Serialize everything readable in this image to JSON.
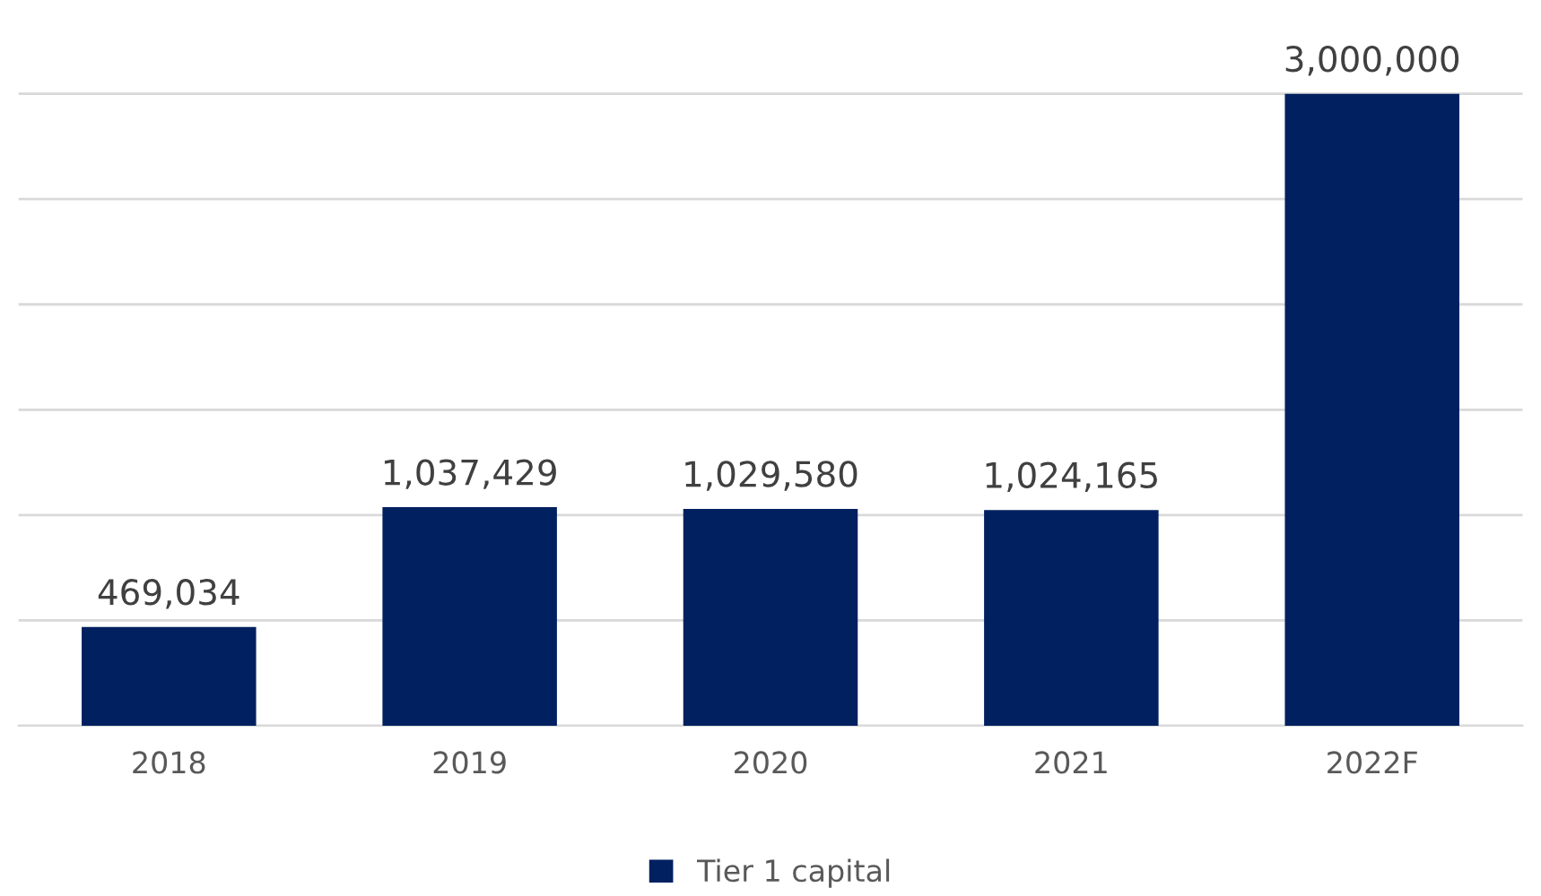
{
  "chart_data": {
    "type": "bar",
    "categories": [
      "2018",
      "2019",
      "2020",
      "2021",
      "2022F"
    ],
    "series": [
      {
        "name": "Tier 1 capital",
        "color": "#002060",
        "values": [
          469034,
          1037429,
          1029580,
          1024165,
          3000000
        ],
        "value_labels": [
          "469,034",
          "1,037,429",
          "1,029,580",
          "1,024,165",
          "3,000,000"
        ]
      }
    ],
    "tick_labels": "x",
    "grid": "y",
    "legend": "bottom"
  }
}
